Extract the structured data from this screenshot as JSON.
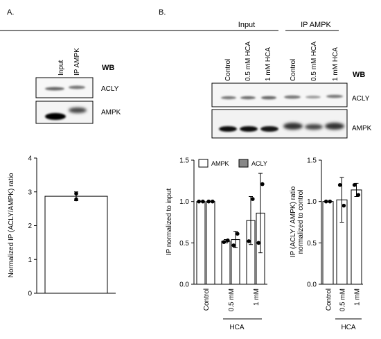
{
  "panel_a": {
    "label": "A.",
    "lane_labels": [
      "Input",
      "IP AMPK"
    ],
    "wb": "WB",
    "bands": [
      "ACLY",
      "AMPK"
    ]
  },
  "panel_b": {
    "label": "B.",
    "group_input": "Input",
    "group_ip": "IP AMPK",
    "lane_labels": [
      "Control",
      "0.5 mM HCA",
      "1 mM HCA",
      "Control",
      "0.5 mM HCA",
      "1 mM HCA"
    ],
    "wb": "WB",
    "bands": [
      "ACLY",
      "AMPK"
    ]
  },
  "colors": {
    "ampk_bar": "#ffffff",
    "acly_bar": "#888888",
    "ink": "#000000"
  },
  "chart_data": [
    {
      "type": "bar",
      "ylabel": "Normalized IP (ACLY/AMPK) ratio",
      "ylim": [
        0,
        4
      ],
      "yticks": [
        "0",
        "1",
        "2",
        "3",
        "4"
      ],
      "categories": [
        ""
      ],
      "values": [
        2.87
      ],
      "error": [
        0.13
      ],
      "points": [
        [
          2.95,
          2.78
        ]
      ]
    },
    {
      "type": "bar",
      "ylabel": "IP normalized  to input",
      "ylim": [
        0,
        1.5
      ],
      "yticks": [
        "0.0",
        "0.5",
        "1.0",
        "1.5"
      ],
      "categories": [
        "Control",
        "0.5 mM",
        "1 mM"
      ],
      "group_label": "HCA",
      "legend": [
        "AMPK",
        "ACLY"
      ],
      "series": [
        {
          "name": "AMPK",
          "values": [
            1.0,
            0.52,
            0.77
          ],
          "error": [
            0,
            0.02,
            0.29
          ],
          "points": [
            [
              1.0,
              1.0
            ],
            [
              0.51,
              0.53
            ],
            [
              0.52,
              1.03
            ]
          ]
        },
        {
          "name": "ACLY",
          "values": [
            1.0,
            0.54,
            0.86
          ],
          "error": [
            0,
            0.1,
            0.48
          ],
          "points": [
            [
              1.0,
              1.0
            ],
            [
              0.47,
              0.61
            ],
            [
              0.5,
              1.21
            ]
          ]
        }
      ]
    },
    {
      "type": "bar",
      "ylabel": "IP (ACLY / AMPK) ratio\nnormalized  to control",
      "ylim": [
        0,
        1.5
      ],
      "yticks": [
        "0.0",
        "0.5",
        "1.0",
        "1.5"
      ],
      "categories": [
        "Control",
        "0.5 mM",
        "1 mM"
      ],
      "group_label": "HCA",
      "values": [
        1.0,
        1.02,
        1.14
      ],
      "error": [
        0,
        0.27,
        0.08
      ],
      "points": [
        [
          1.0,
          1.0
        ],
        [
          1.2,
          0.95
        ],
        [
          1.2,
          1.08
        ]
      ]
    }
  ]
}
